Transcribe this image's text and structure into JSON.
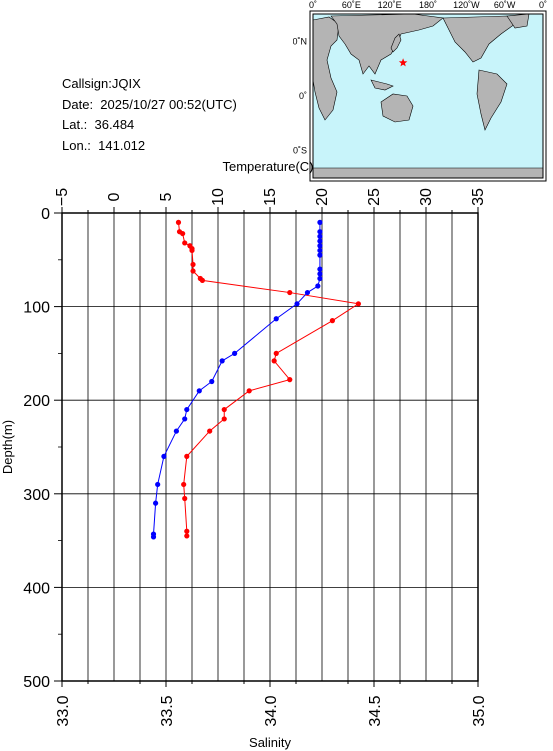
{
  "info": {
    "callsign": "Callsign:JQIX",
    "date": "Date:  2025/10/27 00:52(UTC)",
    "lat": "Lat.:  36.484",
    "lon": "Lon.:  141.012"
  },
  "map": {
    "top_labels": [
      "0˚",
      "60˚E",
      "120˚E",
      "180˚",
      "120˚W",
      "60˚W",
      "0˚"
    ],
    "left_labels": [
      "60˚N",
      "0˚",
      "60˚S"
    ],
    "ocean_color": "#c8f4fa",
    "land_color": "#b4b4b4",
    "marker": {
      "lat": 36.484,
      "lon": 141.012,
      "color": "#ff0000",
      "shape": "star"
    }
  },
  "chart_data": {
    "type": "line",
    "title": "",
    "ylabel": "Depth(m)",
    "ylim": [
      500,
      0
    ],
    "yticks": [
      0,
      100,
      200,
      300,
      400,
      500
    ],
    "grid": true,
    "top_axis": {
      "label": "Temperature(C)",
      "range": [
        -5,
        35
      ],
      "ticks": [
        "−5",
        "0",
        "5",
        "10",
        "15",
        "20",
        "25",
        "30",
        "35"
      ]
    },
    "bottom_axis": {
      "label": "Salinity",
      "range": [
        33.0,
        35.0
      ],
      "ticks": [
        "33.0",
        "33.5",
        "34.0",
        "34.5",
        "35.0"
      ]
    },
    "series": [
      {
        "name": "",
        "axis": "top",
        "color": "#ff0000",
        "depth": [
          10,
          20,
          22,
          32,
          35,
          38,
          40,
          55,
          62,
          70,
          72,
          85,
          97,
          115,
          150,
          158,
          178,
          190,
          210,
          220,
          233,
          260,
          290,
          305,
          340,
          345
        ],
        "values": [
          6.2,
          6.3,
          6.6,
          6.8,
          7.3,
          7.5,
          7.5,
          7.6,
          7.6,
          8.3,
          8.5,
          16.9,
          23.5,
          21.0,
          15.6,
          15.4,
          16.9,
          13.0,
          10.6,
          10.6,
          9.2,
          7.0,
          6.7,
          6.8,
          7.0,
          7.0
        ]
      },
      {
        "name": "",
        "axis": "bottom",
        "color": "#0000ff",
        "depth": [
          10,
          20,
          25,
          30,
          35,
          40,
          45,
          60,
          65,
          70,
          78,
          85,
          97,
          113,
          150,
          158,
          180,
          190,
          210,
          220,
          233,
          260,
          290,
          310,
          343,
          346
        ],
        "values": [
          34.24,
          34.24,
          34.24,
          34.24,
          34.24,
          34.24,
          34.24,
          34.24,
          34.24,
          34.24,
          34.23,
          34.18,
          34.13,
          34.03,
          33.83,
          33.77,
          33.72,
          33.66,
          33.6,
          33.59,
          33.55,
          33.49,
          33.46,
          33.45,
          33.44,
          33.44
        ]
      }
    ]
  }
}
